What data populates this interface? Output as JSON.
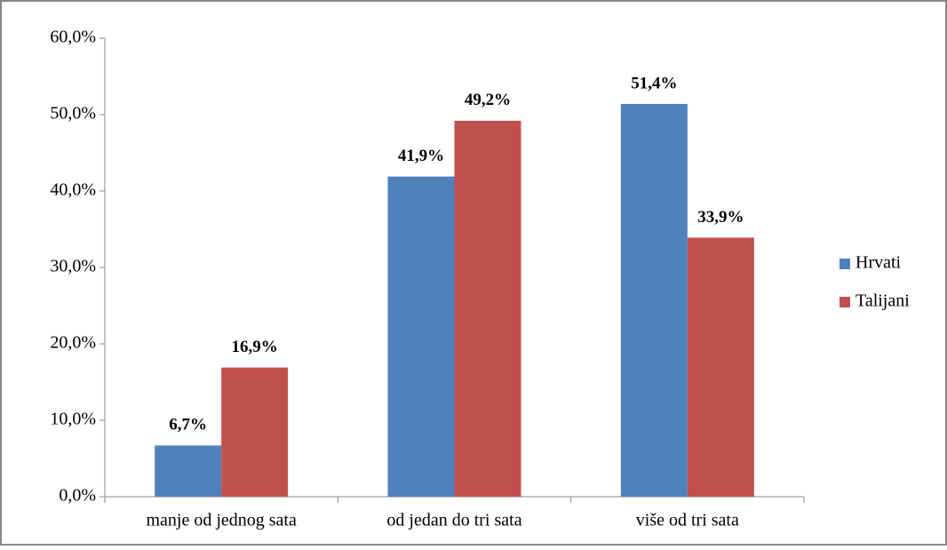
{
  "chart_data": {
    "type": "bar",
    "categories": [
      "manje od jednog sata",
      "od jedan do tri sata",
      "više od tri sata"
    ],
    "series": [
      {
        "name": "Hrvati",
        "color": "#4f81bd",
        "values": [
          6.7,
          41.9,
          51.4
        ],
        "value_labels": [
          "6,7%",
          "41,9%",
          "51,4%"
        ]
      },
      {
        "name": "Talijani",
        "color": "#c0504d",
        "values": [
          16.9,
          49.2,
          33.9
        ],
        "value_labels": [
          "16,9%",
          "49,2%",
          "33,9%"
        ]
      }
    ],
    "ylim": [
      0,
      60
    ],
    "yticks": [
      {
        "value": 0,
        "label": "0,0%"
      },
      {
        "value": 10,
        "label": "10,0%"
      },
      {
        "value": 20,
        "label": "20,0%"
      },
      {
        "value": 30,
        "label": "30,0%"
      },
      {
        "value": 40,
        "label": "40,0%"
      },
      {
        "value": 50,
        "label": "50,0%"
      },
      {
        "value": 60,
        "label": "60,0%"
      }
    ],
    "grid": false,
    "legend": "right"
  }
}
